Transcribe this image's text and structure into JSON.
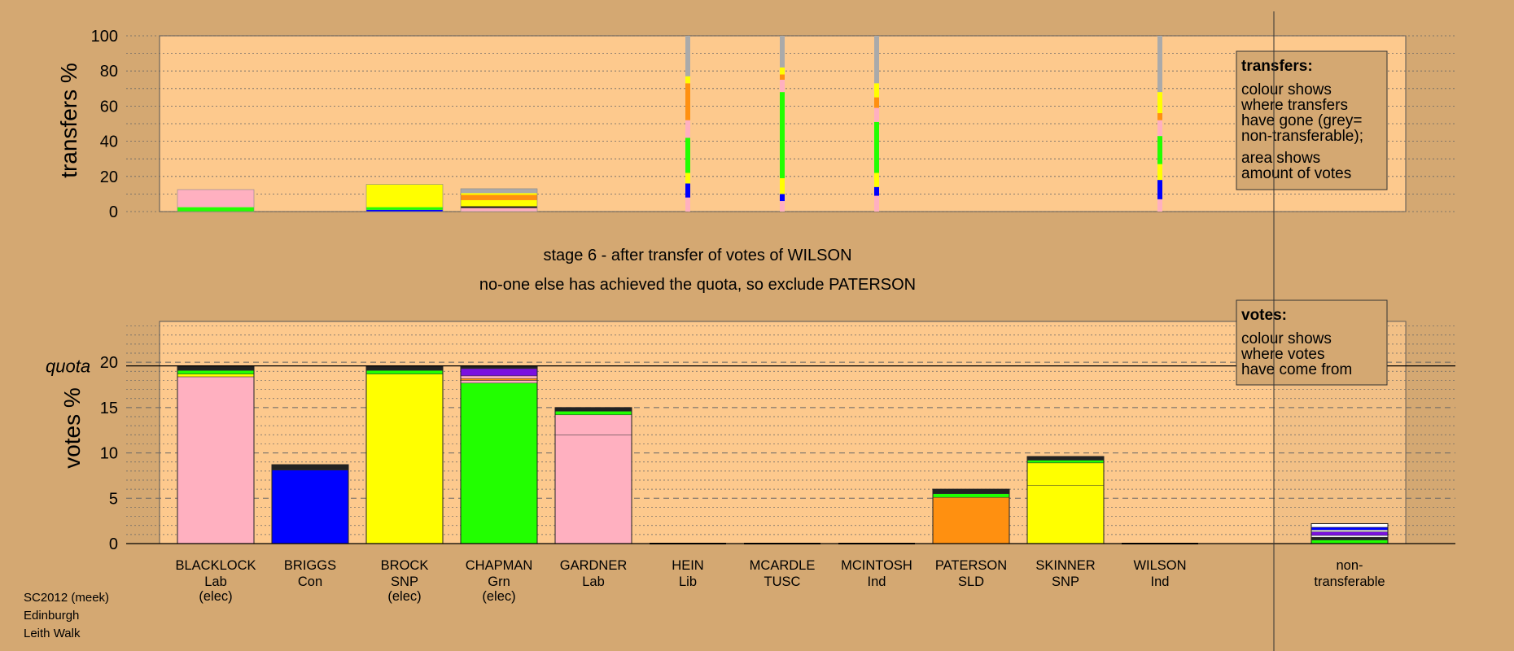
{
  "colors": {
    "background": "#d4a872",
    "plot_bg": "#fdc98d",
    "Lab": "#ffb0c0",
    "Con": "#0000ff",
    "SNP": "#ffff00",
    "Grn": "#22ff00",
    "Lib": "#ffa500",
    "TUSC": "#ff0000",
    "Ind": "#7b10e0",
    "SLD": "#ff9010",
    "nontransferable": "#aaaaaa"
  },
  "top_panel": {
    "ylabel": "transfers %",
    "yticks": [
      "0",
      "20",
      "40",
      "60",
      "80",
      "100"
    ],
    "legend": {
      "title": "transfers:",
      "lines": [
        "colour shows",
        "where transfers",
        "have gone (grey=",
        "non-transferable);",
        "area shows",
        "amount of votes"
      ]
    }
  },
  "stage_text": {
    "line1": "stage 6 - after transfer of votes of WILSON",
    "line2": "no-one else has achieved the quota, so exclude PATERSON"
  },
  "bottom_panel": {
    "ylabel": "votes %",
    "quota_label": "quota",
    "yticks": [
      "0",
      "5",
      "10",
      "15",
      "20"
    ],
    "legend": {
      "title": "votes:",
      "lines": [
        "colour shows",
        "where votes",
        "have come from"
      ]
    }
  },
  "candidates": [
    {
      "name": "BLACKLOCK",
      "party": "Lab",
      "status": "(elec)"
    },
    {
      "name": "BRIGGS",
      "party": "Con",
      "status": ""
    },
    {
      "name": "BROCK",
      "party": "SNP",
      "status": "(elec)"
    },
    {
      "name": "CHAPMAN",
      "party": "Grn",
      "status": "(elec)"
    },
    {
      "name": "GARDNER",
      "party": "Lab",
      "status": ""
    },
    {
      "name": "HEIN",
      "party": "Lib",
      "status": ""
    },
    {
      "name": "MCARDLE",
      "party": "TUSC",
      "status": ""
    },
    {
      "name": "MCINTOSH",
      "party": "Ind",
      "status": ""
    },
    {
      "name": "PATERSON",
      "party": "SLD",
      "status": ""
    },
    {
      "name": "SKINNER",
      "party": "SNP",
      "status": ""
    },
    {
      "name": "WILSON",
      "party": "Ind",
      "status": ""
    }
  ],
  "nontransferable_label": {
    "line1": "non-",
    "line2": "transferable"
  },
  "footer": {
    "line1": "SC2012 (meek)",
    "line2": "Edinburgh",
    "line3": "Leith Walk"
  },
  "chart_data": [
    {
      "type": "bar",
      "title": "",
      "ylabel": "transfers %",
      "ylim": [
        0,
        100
      ],
      "grid": true,
      "legend_placement": "top-right",
      "categories": [
        "BLACKLOCK",
        "BRIGGS",
        "BROCK",
        "CHAPMAN",
        "GARDNER",
        "HEIN",
        "MCARDLE",
        "MCINTOSH",
        "PATERSON",
        "SKINNER",
        "WILSON",
        "non-transferable"
      ],
      "bars": [
        {
          "category": "BLACKLOCK",
          "width": "wide",
          "segments": [
            {
              "color": "#22ff00",
              "from": 0,
              "to": 2.5
            },
            {
              "color": "#ffb0c0",
              "from": 2.5,
              "to": 12.5
            }
          ]
        },
        {
          "category": "BRIGGS",
          "width": "none",
          "segments": []
        },
        {
          "category": "BROCK",
          "width": "wide",
          "segments": [
            {
              "color": "#0000ff",
              "from": 0,
              "to": 1
            },
            {
              "color": "#22ff00",
              "from": 1,
              "to": 2.5
            },
            {
              "color": "#ffff00",
              "from": 2.5,
              "to": 15.5
            }
          ]
        },
        {
          "category": "CHAPMAN",
          "width": "wide",
          "segments": [
            {
              "color": "#ffb0c0",
              "from": 0,
              "to": 2
            },
            {
              "color": "#222222",
              "from": 2,
              "to": 3
            },
            {
              "color": "#ffff00",
              "from": 3,
              "to": 6.5
            },
            {
              "color": "#ff9010",
              "from": 6.5,
              "to": 9.5
            },
            {
              "color": "#ffff00",
              "from": 9.5,
              "to": 10.5
            },
            {
              "color": "#aaaaaa",
              "from": 10.5,
              "to": 13
            }
          ]
        },
        {
          "category": "GARDNER",
          "width": "none",
          "segments": []
        },
        {
          "category": "HEIN",
          "width": "thin",
          "segments": [
            {
              "color": "#ffb0c0",
              "from": 0,
              "to": 8
            },
            {
              "color": "#0000ff",
              "from": 8,
              "to": 16
            },
            {
              "color": "#ffff00",
              "from": 16,
              "to": 22
            },
            {
              "color": "#22ff00",
              "from": 22,
              "to": 42
            },
            {
              "color": "#ffb0c0",
              "from": 42,
              "to": 52
            },
            {
              "color": "#ff9010",
              "from": 52,
              "to": 73
            },
            {
              "color": "#ffff00",
              "from": 73,
              "to": 77
            },
            {
              "color": "#aaaaaa",
              "from": 77,
              "to": 100
            }
          ]
        },
        {
          "category": "MCARDLE",
          "width": "thin",
          "segments": [
            {
              "color": "#ffb0c0",
              "from": 0,
              "to": 6
            },
            {
              "color": "#0000ff",
              "from": 6,
              "to": 10
            },
            {
              "color": "#ffff00",
              "from": 10,
              "to": 19
            },
            {
              "color": "#22ff00",
              "from": 19,
              "to": 68
            },
            {
              "color": "#ffb0c0",
              "from": 68,
              "to": 75
            },
            {
              "color": "#ff9010",
              "from": 75,
              "to": 78
            },
            {
              "color": "#ffff00",
              "from": 78,
              "to": 82
            },
            {
              "color": "#aaaaaa",
              "from": 82,
              "to": 100
            }
          ]
        },
        {
          "category": "MCINTOSH",
          "width": "thin",
          "segments": [
            {
              "color": "#ffb0c0",
              "from": 0,
              "to": 9
            },
            {
              "color": "#0000ff",
              "from": 9,
              "to": 14
            },
            {
              "color": "#ffff00",
              "from": 14,
              "to": 22
            },
            {
              "color": "#22ff00",
              "from": 22,
              "to": 51
            },
            {
              "color": "#ffb0c0",
              "from": 51,
              "to": 59
            },
            {
              "color": "#ff9010",
              "from": 59,
              "to": 65
            },
            {
              "color": "#ffff00",
              "from": 65,
              "to": 73
            },
            {
              "color": "#aaaaaa",
              "from": 73,
              "to": 100
            }
          ]
        },
        {
          "category": "PATERSON",
          "width": "none",
          "segments": []
        },
        {
          "category": "SKINNER",
          "width": "none",
          "segments": []
        },
        {
          "category": "WILSON",
          "width": "thin",
          "segments": [
            {
              "color": "#ffb0c0",
              "from": 0,
              "to": 7
            },
            {
              "color": "#0000ff",
              "from": 7,
              "to": 18
            },
            {
              "color": "#ffff00",
              "from": 18,
              "to": 27
            },
            {
              "color": "#22ff00",
              "from": 27,
              "to": 43
            },
            {
              "color": "#ffb0c0",
              "from": 43,
              "to": 52
            },
            {
              "color": "#ff9010",
              "from": 52,
              "to": 56
            },
            {
              "color": "#ffff00",
              "from": 56,
              "to": 68
            },
            {
              "color": "#aaaaaa",
              "from": 68,
              "to": 100
            }
          ]
        },
        {
          "category": "non-transferable",
          "width": "none",
          "segments": []
        }
      ]
    },
    {
      "type": "bar",
      "title": "",
      "ylabel": "votes %",
      "ylim": [
        0,
        24.5
      ],
      "quota": 19.6,
      "grid": true,
      "legend_placement": "top-right",
      "categories": [
        "BLACKLOCK",
        "BRIGGS",
        "BROCK",
        "CHAPMAN",
        "GARDNER",
        "HEIN",
        "MCARDLE",
        "MCINTOSH",
        "PATERSON",
        "SKINNER",
        "WILSON",
        "non-transferable"
      ],
      "bars": [
        {
          "category": "BLACKLOCK",
          "total": 19.6,
          "segments": [
            {
              "color": "#ffb0c0",
              "from": 0,
              "to": 18.4
            },
            {
              "color": "#ffff00",
              "from": 18.4,
              "to": 18.7
            },
            {
              "color": "#22ff00",
              "from": 18.7,
              "to": 19.1
            },
            {
              "color": "#222222",
              "from": 19.1,
              "to": 19.6
            }
          ]
        },
        {
          "category": "BRIGGS",
          "total": 8.7,
          "segments": [
            {
              "color": "#0000ff",
              "from": 0,
              "to": 8.1
            },
            {
              "color": "#222222",
              "from": 8.1,
              "to": 8.7
            }
          ]
        },
        {
          "category": "BROCK",
          "total": 19.6,
          "segments": [
            {
              "color": "#ffff00",
              "from": 0,
              "to": 18.7
            },
            {
              "color": "#22ff00",
              "from": 18.7,
              "to": 19.1
            },
            {
              "color": "#222222",
              "from": 19.1,
              "to": 19.6
            }
          ]
        },
        {
          "category": "CHAPMAN",
          "total": 19.6,
          "segments": [
            {
              "color": "#22ff00",
              "from": 0,
              "to": 17.7
            },
            {
              "color": "#ffb0c0",
              "from": 17.7,
              "to": 18.0
            },
            {
              "color": "#ff9010",
              "from": 18.0,
              "to": 18.2
            },
            {
              "color": "#ffb0c0",
              "from": 18.2,
              "to": 18.5
            },
            {
              "color": "#7b10e0",
              "from": 18.5,
              "to": 19.3
            },
            {
              "color": "#222222",
              "from": 19.3,
              "to": 19.6
            }
          ]
        },
        {
          "category": "GARDNER",
          "total": 15.0,
          "segments": [
            {
              "color": "#ffb0c0",
              "from": 0,
              "to": 12.0
            },
            {
              "color": "#ffb0c0",
              "from": 12.0,
              "to": 14.2
            },
            {
              "color": "#22ff00",
              "from": 14.2,
              "to": 14.6
            },
            {
              "color": "#222222",
              "from": 14.6,
              "to": 15.0
            }
          ]
        },
        {
          "category": "HEIN",
          "total": 0,
          "segments": []
        },
        {
          "category": "MCARDLE",
          "total": 0,
          "segments": []
        },
        {
          "category": "MCINTOSH",
          "total": 0,
          "segments": []
        },
        {
          "category": "PATERSON",
          "total": 6.0,
          "segments": [
            {
              "color": "#ff9010",
              "from": 0,
              "to": 5.1
            },
            {
              "color": "#22ff00",
              "from": 5.1,
              "to": 5.5
            },
            {
              "color": "#222222",
              "from": 5.5,
              "to": 6.0
            }
          ]
        },
        {
          "category": "SKINNER",
          "total": 9.6,
          "segments": [
            {
              "color": "#ffff00",
              "from": 0,
              "to": 6.4
            },
            {
              "color": "#ffff00",
              "from": 6.4,
              "to": 8.9
            },
            {
              "color": "#22ff00",
              "from": 8.9,
              "to": 9.2
            },
            {
              "color": "#222222",
              "from": 9.2,
              "to": 9.6
            }
          ]
        },
        {
          "category": "WILSON",
          "total": 0,
          "segments": []
        },
        {
          "category": "non-transferable",
          "total": 2.2,
          "segments": [
            {
              "color": "#22ff00",
              "from": 0,
              "to": 0.4
            },
            {
              "color": "#222222",
              "from": 0.4,
              "to": 0.7
            },
            {
              "color": "#ffffff",
              "from": 0.7,
              "to": 0.9
            },
            {
              "color": "#7b10e0",
              "from": 0.9,
              "to": 1.3
            },
            {
              "color": "#ffffff",
              "from": 1.3,
              "to": 1.5
            },
            {
              "color": "#0000ff",
              "from": 1.5,
              "to": 1.8
            },
            {
              "color": "#ffffff",
              "from": 1.8,
              "to": 2.2
            }
          ]
        }
      ]
    }
  ]
}
